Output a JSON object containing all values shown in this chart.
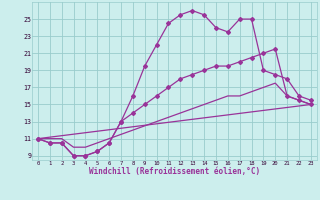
{
  "line1_x": [
    0,
    1,
    2,
    3,
    4,
    5,
    6,
    7,
    8,
    9,
    10,
    11,
    12,
    13,
    14,
    15,
    16,
    17,
    18,
    19,
    20,
    21,
    22,
    23
  ],
  "line1_y": [
    11,
    10.5,
    10.5,
    9,
    9,
    9.5,
    10.5,
    13,
    16,
    19.5,
    22,
    24.5,
    25.5,
    26,
    25.5,
    24,
    23.5,
    25,
    25,
    19,
    18.5,
    18,
    16,
    15.5
  ],
  "line2_x": [
    0,
    1,
    2,
    3,
    4,
    5,
    6,
    7,
    8,
    9,
    10,
    11,
    12,
    13,
    14,
    15,
    16,
    17,
    18,
    19,
    20,
    21,
    22,
    23
  ],
  "line2_y": [
    11,
    10.5,
    10.5,
    9,
    9,
    9.5,
    10.5,
    13,
    14,
    15,
    16,
    17,
    18,
    18.5,
    19,
    19.5,
    19.5,
    20,
    20.5,
    21,
    21.5,
    16,
    15.5,
    15
  ],
  "line3_x": [
    0,
    1,
    2,
    3,
    4,
    5,
    6,
    7,
    8,
    9,
    10,
    11,
    12,
    13,
    14,
    15,
    16,
    17,
    18,
    19,
    20,
    21,
    22,
    23
  ],
  "line3_y": [
    11,
    11,
    11,
    10,
    10,
    10.5,
    11,
    11.5,
    12,
    12.5,
    13,
    13.5,
    14,
    14.5,
    15,
    15.5,
    16,
    16,
    16.5,
    17,
    17.5,
    16,
    15.5,
    15
  ],
  "line4_x": [
    0,
    23
  ],
  "line4_y": [
    11,
    15
  ],
  "bg_color": "#cceeed",
  "line_color": "#993399",
  "grid_color": "#99cccc",
  "ytick_values": [
    9,
    11,
    13,
    15,
    17,
    19,
    21,
    23,
    25
  ],
  "xlim": [
    -0.5,
    23.5
  ],
  "ylim": [
    8.5,
    27
  ],
  "xlabel": "Windchill (Refroidissement éolien,°C)"
}
